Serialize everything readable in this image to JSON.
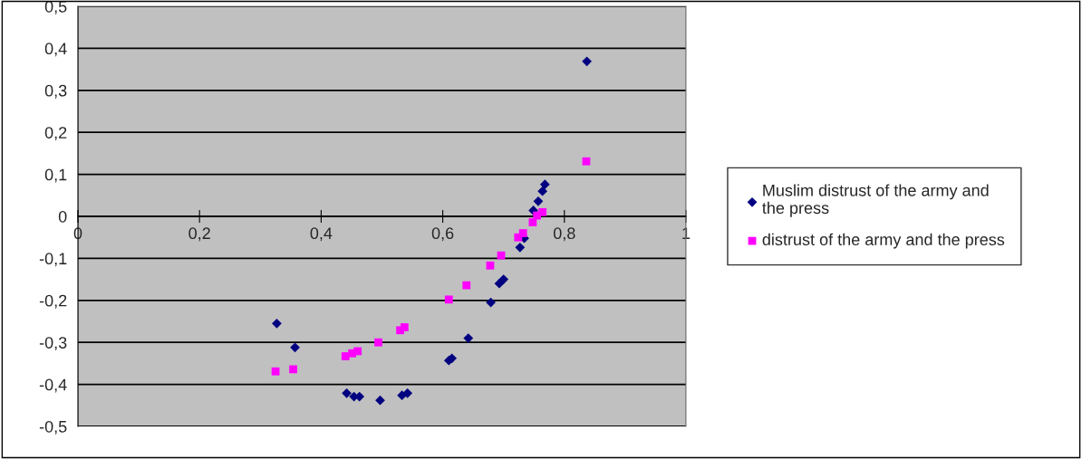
{
  "chart_data": {
    "type": "scatter",
    "xlim": [
      0,
      1
    ],
    "ylim": [
      -0.5,
      0.5
    ],
    "xticks": [
      0,
      {
        "value": 0.2,
        "label": "0,2"
      },
      {
        "value": 0.4,
        "label": "0,4"
      },
      {
        "value": 0.6,
        "label": "0,6"
      },
      {
        "value": 0.8,
        "label": "0,8"
      },
      1
    ],
    "yticks": [
      {
        "value": -0.5,
        "label": "-0,5"
      },
      {
        "value": -0.4,
        "label": "-0,4"
      },
      {
        "value": -0.3,
        "label": "-0,3"
      },
      {
        "value": -0.2,
        "label": "-0,2"
      },
      {
        "value": -0.1,
        "label": "-0,1"
      },
      0,
      {
        "value": 0.1,
        "label": "0,1"
      },
      {
        "value": 0.2,
        "label": "0,2"
      },
      {
        "value": 0.3,
        "label": "0,3"
      },
      {
        "value": 0.4,
        "label": "0,4"
      },
      {
        "value": 0.5,
        "label": "0,5"
      }
    ],
    "grid": "y",
    "legend": "right",
    "series": [
      {
        "name": "Muslim distrust of the army and the press",
        "color": "#000080",
        "marker": "diamond",
        "x": [
          0.327,
          0.357,
          0.442,
          0.454,
          0.463,
          0.497,
          0.533,
          0.542,
          0.61,
          0.615,
          0.642,
          0.679,
          0.693,
          0.7,
          0.727,
          0.734,
          0.749,
          0.757,
          0.764,
          0.768,
          0.837
        ],
        "values": [
          -0.255,
          -0.312,
          -0.421,
          -0.429,
          -0.429,
          -0.438,
          -0.426,
          -0.421,
          -0.343,
          -0.338,
          -0.29,
          -0.205,
          -0.16,
          -0.15,
          -0.074,
          -0.052,
          0.014,
          0.036,
          0.06,
          0.076,
          0.369
        ]
      },
      {
        "name": "distrust of the army and the press",
        "color": "#ff00ff",
        "marker": "square",
        "x": [
          0.325,
          0.354,
          0.44,
          0.451,
          0.46,
          0.494,
          0.53,
          0.537,
          0.61,
          0.639,
          0.678,
          0.696,
          0.724,
          0.732,
          0.748,
          0.755,
          0.764,
          0.836
        ],
        "values": [
          -0.369,
          -0.364,
          -0.333,
          -0.326,
          -0.321,
          -0.3,
          -0.271,
          -0.264,
          -0.198,
          -0.164,
          -0.117,
          -0.093,
          -0.05,
          -0.04,
          -0.014,
          0.002,
          0.01,
          0.131
        ]
      }
    ]
  }
}
